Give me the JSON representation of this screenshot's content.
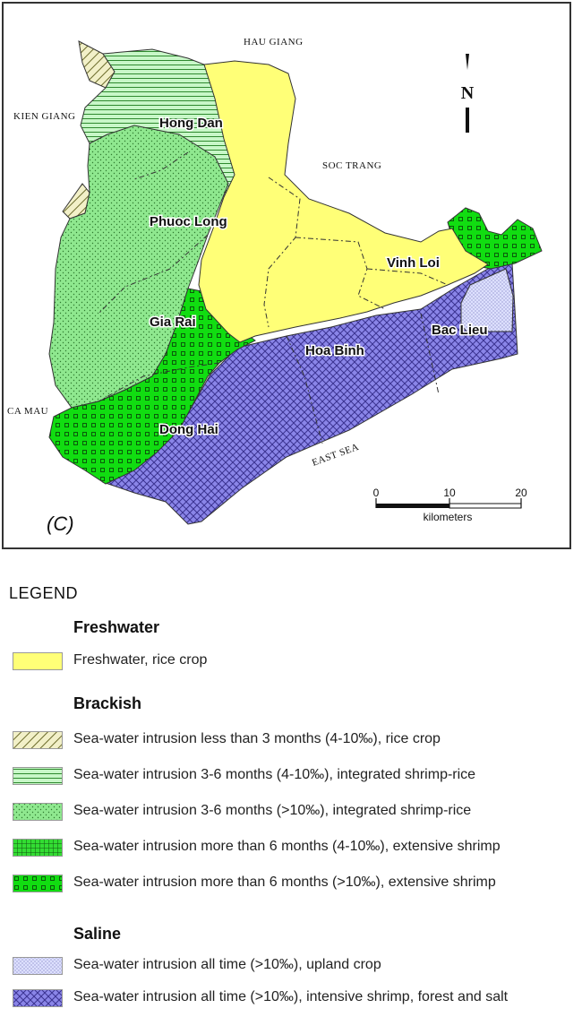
{
  "map": {
    "panel_label": "(C)",
    "north_label": "N",
    "scale": {
      "ticks": [
        "0",
        "10",
        "20"
      ],
      "unit": "kilometers"
    },
    "provinces": [
      "HAU GIANG",
      "KIEN GIANG",
      "SOC TRANG",
      "CA MAU",
      "EAST SEA"
    ],
    "districts": [
      "Hong Dan",
      "Phuoc Long",
      "Vinh Loi",
      "Gia Rai",
      "Hoa Binh",
      "Bac Lieu",
      "Dong Hai"
    ]
  },
  "legend": {
    "title": "LEGEND",
    "groups": [
      {
        "name": "Freshwater",
        "items": [
          {
            "text": "Freshwater, rice crop",
            "pattern": "solid",
            "color": "#ffff77"
          }
        ]
      },
      {
        "name": "Brackish",
        "items": [
          {
            "text": "Sea-water intrusion less than 3 months (4-10‰), rice crop",
            "pattern": "diagonal-hatch",
            "color": "#f2f0c8"
          },
          {
            "text": "Sea-water intrusion 3-6 months (4-10‰), integrated shrimp-rice",
            "pattern": "horizontal-lines",
            "color": "#c8f7c8"
          },
          {
            "text": "Sea-water intrusion 3-6 months (>10‰), integrated shrimp-rice",
            "pattern": "dots",
            "color": "#8fe88f"
          },
          {
            "text": "Sea-water intrusion more than 6 months (4-10‰), extensive shrimp",
            "pattern": "grid",
            "color": "#33dd33"
          },
          {
            "text": "Sea-water intrusion more than 6 months (>10‰), extensive shrimp",
            "pattern": "squares",
            "color": "#11dd11"
          }
        ]
      },
      {
        "name": "Saline",
        "items": [
          {
            "text": "Sea-water intrusion all time (>10‰), upland crop",
            "pattern": "fine-dots",
            "color": "#dde0ff"
          },
          {
            "text": "Sea-water intrusion all time (>10‰), intensive shrimp, forest and salt",
            "pattern": "crosshatch",
            "color": "#8a85e8"
          }
        ]
      }
    ]
  }
}
